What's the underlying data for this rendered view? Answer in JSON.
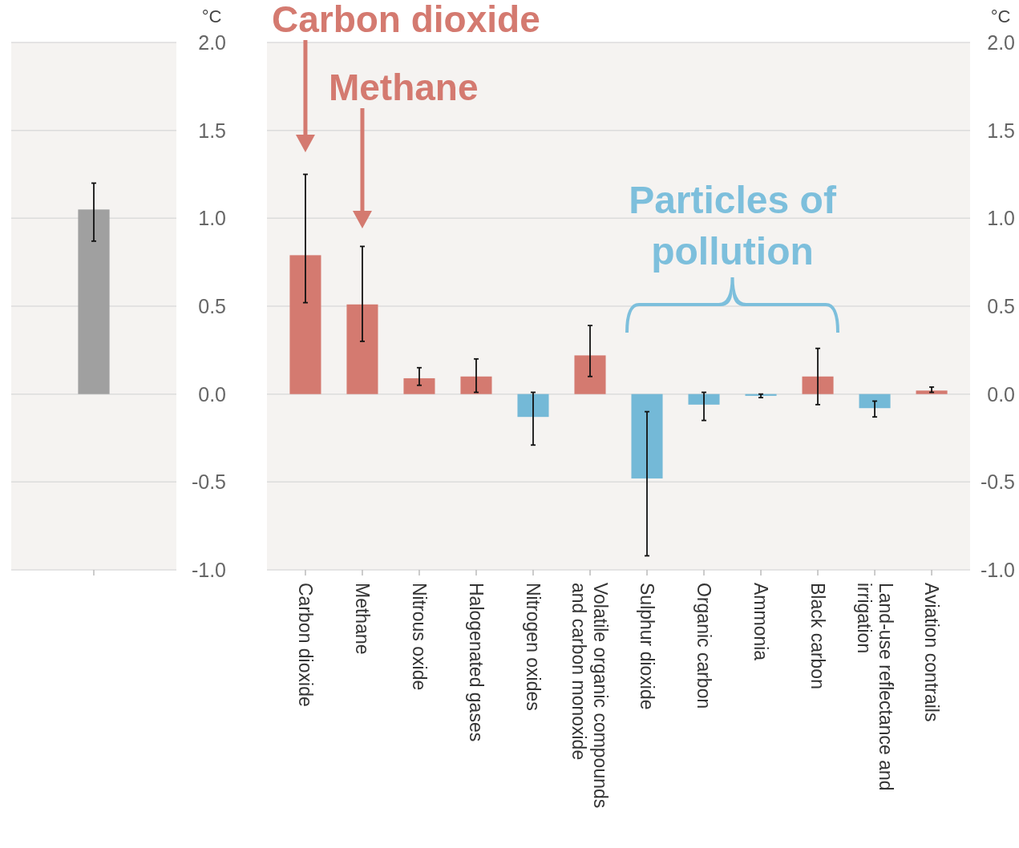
{
  "chart_data": [
    {
      "type": "bar",
      "ylabel": "°C",
      "categories": [
        null
      ],
      "values": [
        1.05
      ],
      "errors": [
        [
          0.87,
          1.2
        ]
      ],
      "colors": [
        "#a0a0a0"
      ],
      "ylim": [
        -1,
        2
      ],
      "yticks": [
        {
          "value": -1,
          "label": "-1.0"
        },
        {
          "value": -0.5,
          "label": "-0.5"
        },
        {
          "value": 0,
          "label": "0.0"
        },
        {
          "value": 0.5,
          "label": "0.5"
        },
        {
          "value": 1,
          "label": "1.0"
        },
        {
          "value": 1.5,
          "label": "1.5"
        },
        {
          "value": 2,
          "label": "2.0"
        }
      ],
      "grid": "y"
    },
    {
      "type": "bar",
      "ylabel": "°C",
      "categories": [
        "Carbon dioxide",
        "Methane",
        "Nitrous oxide",
        "Halogenated gases",
        "Nitrogen oxides",
        "Volatile organic compounds and carbon monoxide",
        "Sulphur dioxide",
        "Organic carbon",
        "Ammonia",
        "Black carbon",
        "Land-use reflectance and irrigation",
        "Aviation contrails"
      ],
      "values": [
        0.79,
        0.51,
        0.09,
        0.1,
        -0.13,
        0.22,
        -0.48,
        -0.06,
        -0.01,
        0.1,
        -0.08,
        0.02
      ],
      "errors": [
        [
          0.52,
          1.25
        ],
        [
          0.3,
          0.84
        ],
        [
          0.05,
          0.15
        ],
        [
          0.01,
          0.2
        ],
        [
          -0.29,
          0.01
        ],
        [
          0.1,
          0.39
        ],
        [
          -0.92,
          -0.1
        ],
        [
          -0.15,
          0.01
        ],
        [
          -0.02,
          0
        ],
        [
          -0.06,
          0.26
        ],
        [
          -0.13,
          -0.04
        ],
        [
          0.01,
          0.04
        ]
      ],
      "colors": [
        "#d47a70",
        "#d47a70",
        "#d47a70",
        "#d47a70",
        "#74b9d7",
        "#d47a70",
        "#74b9d7",
        "#74b9d7",
        "#74b9d7",
        "#d47a70",
        "#74b9d7",
        "#d47a70"
      ],
      "ylim": [
        -1,
        2
      ],
      "yticks": [
        {
          "value": -1,
          "label": "-1.0"
        },
        {
          "value": -0.5,
          "label": "-0.5"
        },
        {
          "value": 0,
          "label": "0.0"
        },
        {
          "value": 0.5,
          "label": "0.5"
        },
        {
          "value": 1,
          "label": "1.0"
        },
        {
          "value": 1.5,
          "label": "1.5"
        },
        {
          "value": 2,
          "label": "2.0"
        }
      ],
      "grid": "y",
      "annotations": [
        "Carbon dioxide",
        "Methane",
        "Particles of pollution"
      ]
    }
  ]
}
